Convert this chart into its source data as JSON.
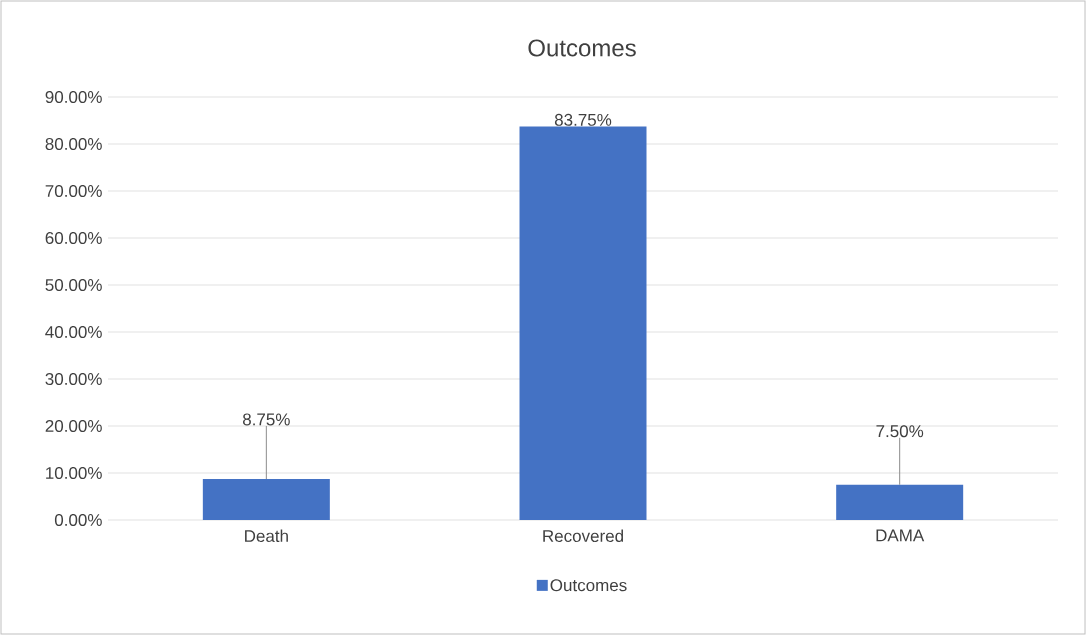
{
  "chart_data": {
    "type": "bar",
    "title": "Outcomes",
    "categories": [
      "Death",
      "Recovered",
      "DAMA"
    ],
    "series": [
      {
        "name": "Outcomes",
        "color": "#4472c4",
        "values": [
          8.75,
          83.75,
          7.5
        ],
        "value_labels": [
          "8.75%",
          "83.75%",
          "7.50%"
        ],
        "errors": [
          [
            8.75,
            20
          ],
          null,
          [
            7.5,
            17.5
          ]
        ]
      }
    ],
    "ylim": [
      0,
      90
    ],
    "yticks": [
      {
        "value": 0,
        "label": "0.00%"
      },
      {
        "value": 10,
        "label": "10.00%"
      },
      {
        "value": 20,
        "label": "20.00%"
      },
      {
        "value": 30,
        "label": "30.00%"
      },
      {
        "value": 40,
        "label": "40.00%"
      },
      {
        "value": 50,
        "label": "50.00%"
      },
      {
        "value": 60,
        "label": "60.00%"
      },
      {
        "value": 70,
        "label": "70.00%"
      },
      {
        "value": 80,
        "label": "80.00%"
      },
      {
        "value": 90,
        "label": "90.00%"
      }
    ],
    "grid": "y",
    "legend": "bottom"
  }
}
